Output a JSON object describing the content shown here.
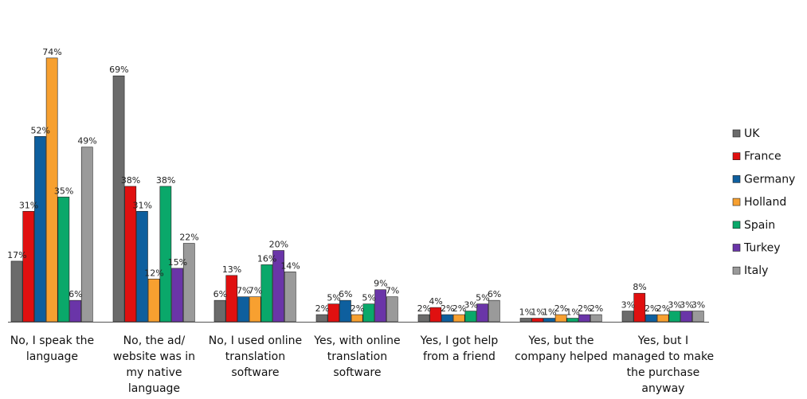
{
  "chart_data": {
    "type": "bar",
    "categories": [
      [
        "No, I speak the",
        "language"
      ],
      [
        "No, the ad/",
        "website was in",
        "my native",
        "language"
      ],
      [
        "No, I used online",
        "translation",
        "software"
      ],
      [
        "Yes, with online",
        "translation",
        "software"
      ],
      [
        "Yes, I got help",
        "from a friend"
      ],
      [
        "Yes, but the",
        "company helped"
      ],
      [
        "Yes, but I",
        "managed to make",
        "the purchase",
        "anyway"
      ]
    ],
    "series": [
      {
        "name": "UK",
        "color": "#6b6b6b",
        "values": [
          17,
          69,
          6,
          2,
          2,
          1,
          3
        ]
      },
      {
        "name": "France",
        "color": "#e01010",
        "values": [
          31,
          38,
          13,
          5,
          4,
          1,
          8
        ]
      },
      {
        "name": "Germany",
        "color": "#0e5f9e",
        "values": [
          52,
          31,
          7,
          6,
          2,
          1,
          2
        ]
      },
      {
        "name": "Holland",
        "color": "#f7a030",
        "values": [
          74,
          12,
          7,
          2,
          2,
          2,
          2
        ]
      },
      {
        "name": "Spain",
        "color": "#0aa86a",
        "values": [
          35,
          38,
          16,
          5,
          3,
          1,
          3
        ]
      },
      {
        "name": "Turkey",
        "color": "#6a35a8",
        "values": [
          6,
          15,
          20,
          9,
          5,
          2,
          3
        ]
      },
      {
        "name": "Italy",
        "color": "#9a9a9a",
        "values": [
          49,
          22,
          14,
          7,
          6,
          2,
          3
        ]
      }
    ],
    "value_suffix": "%",
    "ylim": [
      0,
      80
    ],
    "grid": false,
    "legend": "right"
  }
}
